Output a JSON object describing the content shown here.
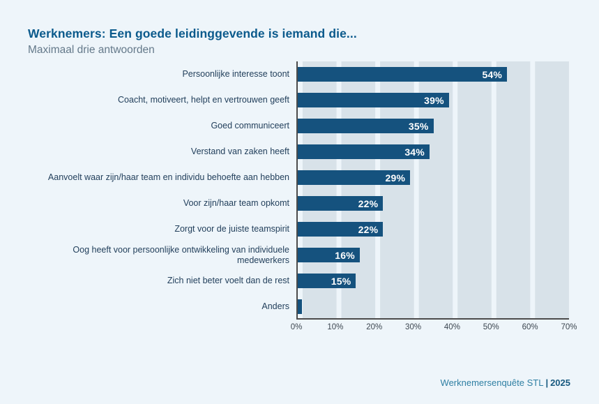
{
  "header": {
    "title": "Werknemers: Een goede leidinggevende is iemand die...",
    "subtitle": "Maximaal drie antwoorden"
  },
  "footer": {
    "source": "Werknemersenquête STL",
    "separator": "|",
    "year": "2025"
  },
  "colors": {
    "background": "#eef5fa",
    "bar": "#15527e",
    "title": "#0b5a8c",
    "subtitle": "#64798a",
    "category_label": "#23405c",
    "bar_value_label": "#ffffff",
    "gridline": "#d8e2e9",
    "axis": "#4b4b4b",
    "footer": "#2e7fa3"
  },
  "chart_data": {
    "type": "bar",
    "orientation": "horizontal",
    "title": "Werknemers: Een goede leidinggevende is iemand die...",
    "subtitle": "Maximaal drie antwoorden",
    "categories": [
      "Persoonlijke interesse toont",
      "Coacht, motiveert, helpt en vertrouwen geeft",
      "Goed communiceert",
      "Verstand van zaken heeft",
      "Aanvoelt waar zijn/haar team en individu behoefte aan hebben",
      "Voor zijn/haar team opkomt",
      "Zorgt voor de juiste teamspirit",
      "Oog heeft voor persoonlijke ontwikkeling van individuele medewerkers",
      "Zich niet beter voelt dan de rest",
      "Anders"
    ],
    "values": [
      54,
      39,
      35,
      34,
      29,
      22,
      22,
      16,
      15,
      1
    ],
    "value_labels": [
      "54%",
      "39%",
      "35%",
      "34%",
      "29%",
      "22%",
      "22%",
      "16%",
      "15%",
      ""
    ],
    "xlabel": "",
    "ylabel": "",
    "xlim": [
      0,
      70
    ],
    "x_ticks": [
      "0%",
      "10%",
      "20%",
      "30%",
      "40%",
      "50%",
      "60%",
      "70%"
    ],
    "grid": "vertical gridlines every 10%",
    "legend": "none",
    "bar_color": "#15527e"
  }
}
